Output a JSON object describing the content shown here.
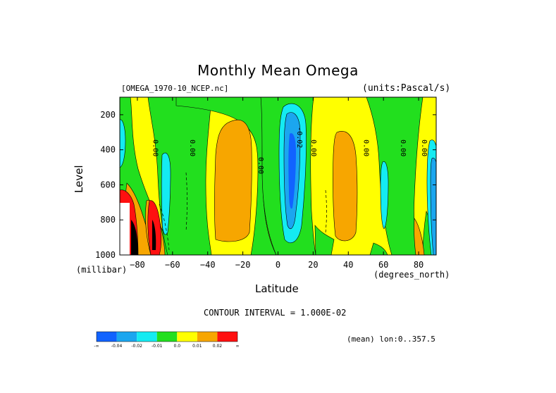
{
  "chart_data": {
    "type": "heatmap",
    "title": "Monthly Mean Omega",
    "dataset_label": "[OMEGA_1970-10_NCEP.nc]",
    "units_label": "(units:Pascal/s)",
    "xlabel": "Latitude",
    "xunit": "(degrees_north)",
    "ylabel": "Level",
    "yunit": "(millibar)",
    "xlim": [
      -90,
      90
    ],
    "ylim": [
      1000,
      100
    ],
    "x_ticks": [
      -80,
      -60,
      -40,
      -20,
      0,
      20,
      40,
      60,
      80
    ],
    "x_tick_labels": [
      "−80",
      "−60",
      "−40",
      "−20",
      "0",
      "20",
      "40",
      "60",
      "80"
    ],
    "y_ticks": [
      200,
      400,
      600,
      800,
      1000
    ],
    "y_tick_labels": [
      "200",
      "400",
      "600",
      "800",
      "1000"
    ],
    "contour_interval_label": "CONTOUR INTERVAL = 1.000E-02",
    "mean_label": "(mean) lon:0..357.5",
    "contour_labels": [
      {
        "text": "0.00",
        "lat": -71,
        "level": 390
      },
      {
        "text": "0.00",
        "lat": -50,
        "level": 390
      },
      {
        "text": "0.00",
        "lat": -11,
        "level": 490
      },
      {
        "text": "-0.02",
        "lat": 11,
        "level": 330
      },
      {
        "text": "0.00",
        "lat": 19,
        "level": 390
      },
      {
        "text": "0.00",
        "lat": 49,
        "level": 390
      },
      {
        "text": "0.00",
        "lat": 70,
        "level": 390
      },
      {
        "text": "0.00",
        "lat": 82,
        "level": 390
      }
    ],
    "regions": [
      {
        "name": "pos-high-south",
        "class": "0.02",
        "lat": -84,
        "level": 800
      },
      {
        "name": "pos-mid-south-left",
        "class": "0.01",
        "lat": -72,
        "level": 780
      },
      {
        "name": "pos-mid-south",
        "class": "0.01",
        "lat": -30,
        "level": 560
      },
      {
        "name": "pos-north-mid",
        "class": "0.01",
        "lat": 37,
        "level": 520
      },
      {
        "name": "neg-equator",
        "class": "-0.04",
        "lat": 7,
        "level": 450
      },
      {
        "name": "neg-equator-edge",
        "class": "-0.02",
        "lat": 7,
        "level": 450
      },
      {
        "name": "neg-south-60",
        "class": "-0.02",
        "lat": -64,
        "level": 600
      },
      {
        "name": "neg-north-88",
        "class": "-0.04",
        "lat": 88,
        "level": 800
      },
      {
        "name": "neg-north-60",
        "class": "-0.02",
        "lat": 60,
        "level": 590
      }
    ],
    "colorbar": {
      "classes": [
        {
          "label": "-∞",
          "color": "#1163ff"
        },
        {
          "label": "-0.04",
          "color": "#1ba6ef"
        },
        {
          "label": "-0.02",
          "color": "#14ebf2"
        },
        {
          "label": "-0.01",
          "color": "#22df1e"
        },
        {
          "label": "0.0",
          "color": "#ffff00"
        },
        {
          "label": "0.01",
          "color": "#f7a600"
        },
        {
          "label": "0.02",
          "color": "#ff1010"
        },
        {
          "label": "∞",
          "color": "#000000"
        }
      ]
    },
    "grid": false,
    "legend": "bottom-left colorbar"
  }
}
